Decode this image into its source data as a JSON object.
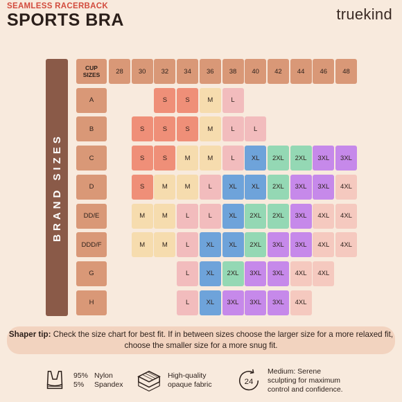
{
  "header": {
    "subtitle": "SEAMLESS RACERBACK",
    "title": "SPORTS BRA",
    "brand": "truekind"
  },
  "side_label": "BRAND SIZES",
  "chart": {
    "corner_label": "CUP SIZES",
    "band_sizes": [
      "28",
      "30",
      "32",
      "34",
      "36",
      "38",
      "40",
      "42",
      "44",
      "46",
      "48"
    ],
    "rows": [
      {
        "cup": "A",
        "cells": [
          "",
          "",
          "S",
          "S",
          "M",
          "L",
          "",
          "",
          "",
          "",
          ""
        ]
      },
      {
        "cup": "B",
        "cells": [
          "",
          "S",
          "S",
          "S",
          "M",
          "L",
          "L",
          "",
          "",
          "",
          ""
        ]
      },
      {
        "cup": "C",
        "cells": [
          "",
          "S",
          "S",
          "M",
          "M",
          "L",
          "XL",
          "2XL",
          "2XL",
          "3XL",
          "3XL"
        ]
      },
      {
        "cup": "D",
        "cells": [
          "",
          "S",
          "M",
          "M",
          "L",
          "XL",
          "XL",
          "2XL",
          "3XL",
          "3XL",
          "4XL"
        ]
      },
      {
        "cup": "DD/E",
        "cells": [
          "",
          "M",
          "M",
          "L",
          "L",
          "XL",
          "2XL",
          "2XL",
          "3XL",
          "4XL",
          "4XL"
        ]
      },
      {
        "cup": "DDD/F",
        "cells": [
          "",
          "M",
          "M",
          "L",
          "XL",
          "XL",
          "2XL",
          "3XL",
          "3XL",
          "4XL",
          "4XL"
        ]
      },
      {
        "cup": "G",
        "cells": [
          "",
          "",
          "",
          "L",
          "XL",
          "2XL",
          "3XL",
          "3XL",
          "4XL",
          "4XL",
          ""
        ]
      },
      {
        "cup": "H",
        "cells": [
          "",
          "",
          "",
          "L",
          "XL",
          "3XL",
          "3XL",
          "3XL",
          "4XL",
          "",
          ""
        ]
      }
    ],
    "size_colors": {
      "S": "#ef8f78",
      "M": "#f6dcae",
      "L": "#f2bcbd",
      "XL": "#6ea3da",
      "2XL": "#94d8b4",
      "3XL": "#c689ea",
      "4XL": "#f5c9bf",
      "header": "#d99877"
    }
  },
  "tip": {
    "label": "Shaper tip:",
    "text": " Check the size chart for best fit. If in between sizes choose the larger size for a more relaxed fit, choose the smaller size for a more snug fit."
  },
  "features": {
    "material": {
      "icon": "sports-bra-icon",
      "rows": [
        {
          "pct": "95%",
          "name": "Nylon"
        },
        {
          "pct": "5%",
          "name": "Spandex"
        }
      ]
    },
    "fabric": {
      "icon": "fabric-layers-icon",
      "line1": "High-quality",
      "line2": "opaque fabric"
    },
    "support": {
      "icon": "24-hour-icon",
      "line1": "Medium: Serene",
      "line2": "sculpting for maximum",
      "line3": "control and confidence."
    }
  }
}
